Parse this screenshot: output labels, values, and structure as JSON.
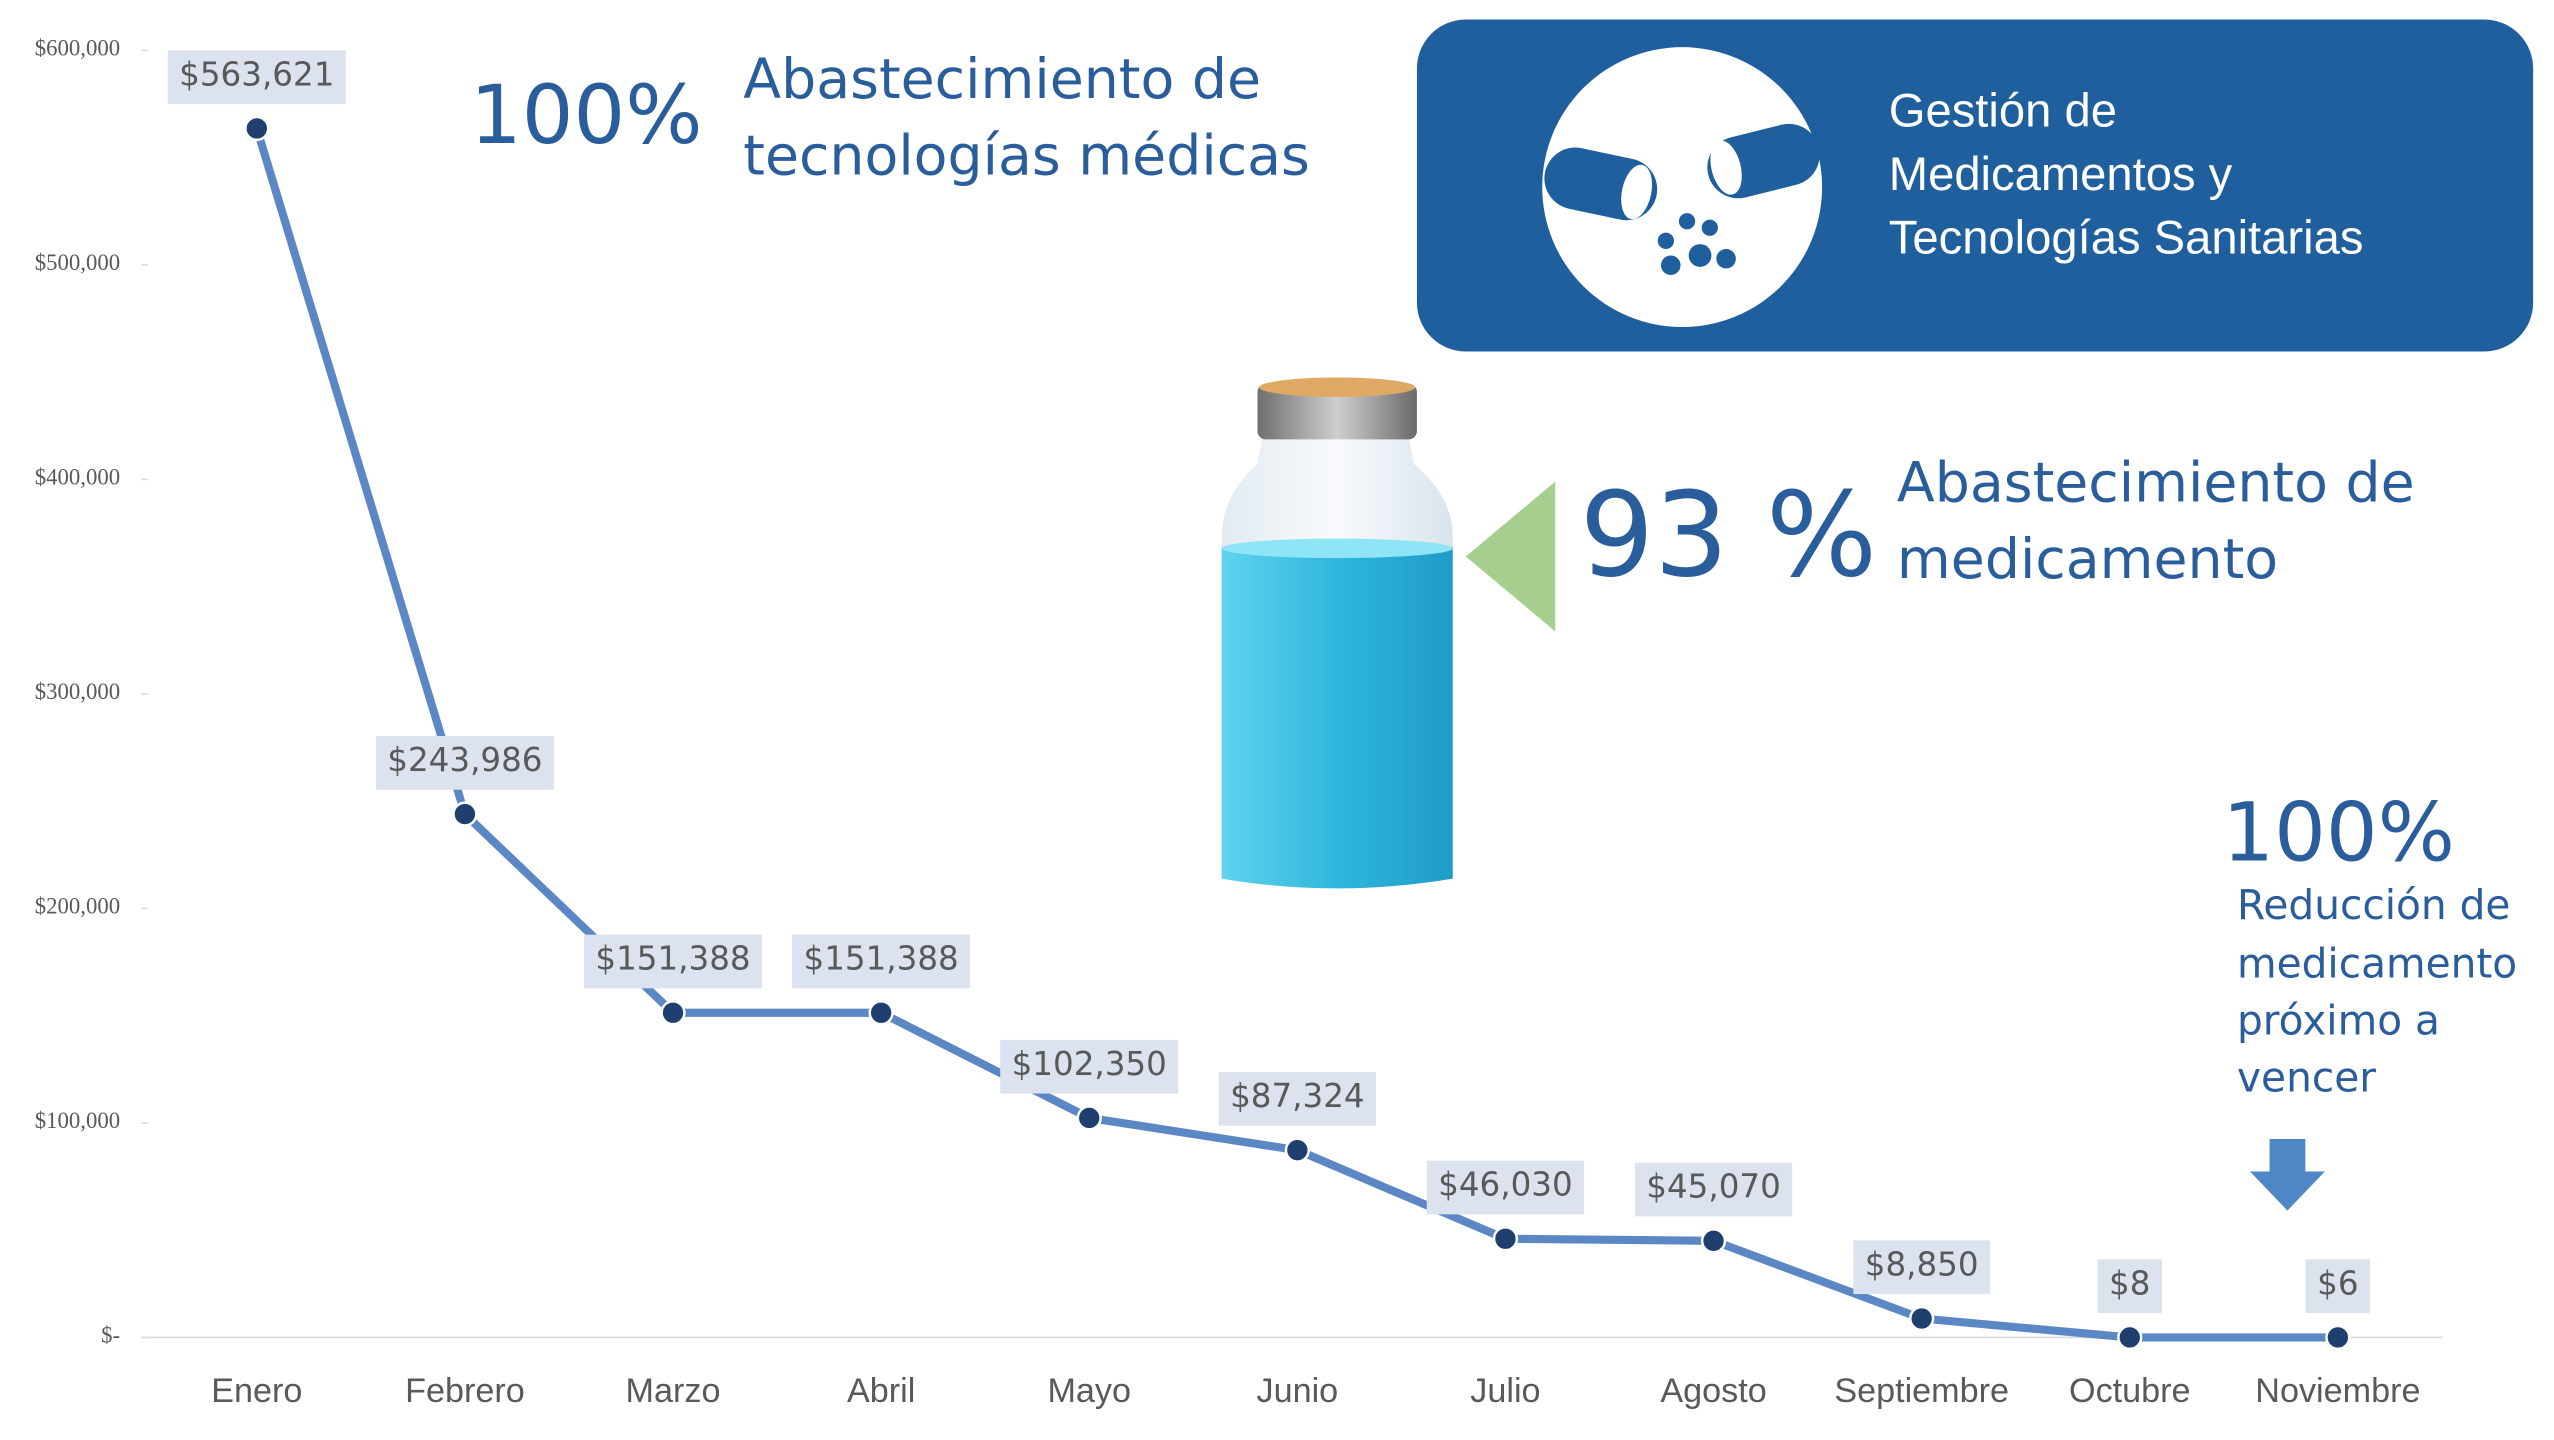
{
  "chart_data": {
    "type": "line",
    "categories": [
      "Enero",
      "Febrero",
      "Marzo",
      "Abril",
      "Mayo",
      "Junio",
      "Julio",
      "Agosto",
      "Septiembre",
      "Octubre",
      "Noviembre"
    ],
    "series": [
      {
        "color": "#5b87c5",
        "values": [
          563621,
          243986,
          151388,
          151388,
          102350,
          87324,
          46030,
          45070,
          8850,
          8,
          6
        ],
        "value_labels": [
          "$563,621",
          "$243,986",
          "$151,388",
          "$151,388",
          "$102,350",
          "$87,324",
          "$46,030",
          "$45,070",
          "$8,850",
          "$8",
          "$6"
        ]
      }
    ],
    "ylim": [
      0,
      600000
    ],
    "yticks": [
      {
        "value": 0,
        "label": "$-"
      },
      {
        "value": 100000,
        "label": "$100,000"
      },
      {
        "value": 200000,
        "label": "$200,000"
      },
      {
        "value": 300000,
        "label": "$300,000"
      },
      {
        "value": 400000,
        "label": "$400,000"
      },
      {
        "value": 500000,
        "label": "$500,000"
      },
      {
        "value": 600000,
        "label": "$600,000"
      }
    ],
    "grid": false
  },
  "banner": {
    "lines": [
      "Gestión de",
      "Medicamentos y",
      "Tecnologías Sanitarias"
    ]
  },
  "tech_supply": {
    "percent": "100%",
    "lines": [
      "Abastecimiento de",
      "tecnologías médicas"
    ]
  },
  "med_supply": {
    "percent": "93 %",
    "lines": [
      "Abastecimiento de",
      "medicamento"
    ]
  },
  "expiry_reduction": {
    "percent": "100%",
    "lines": [
      "Reducción de",
      "medicamento",
      "próximo a",
      "vencer"
    ]
  }
}
